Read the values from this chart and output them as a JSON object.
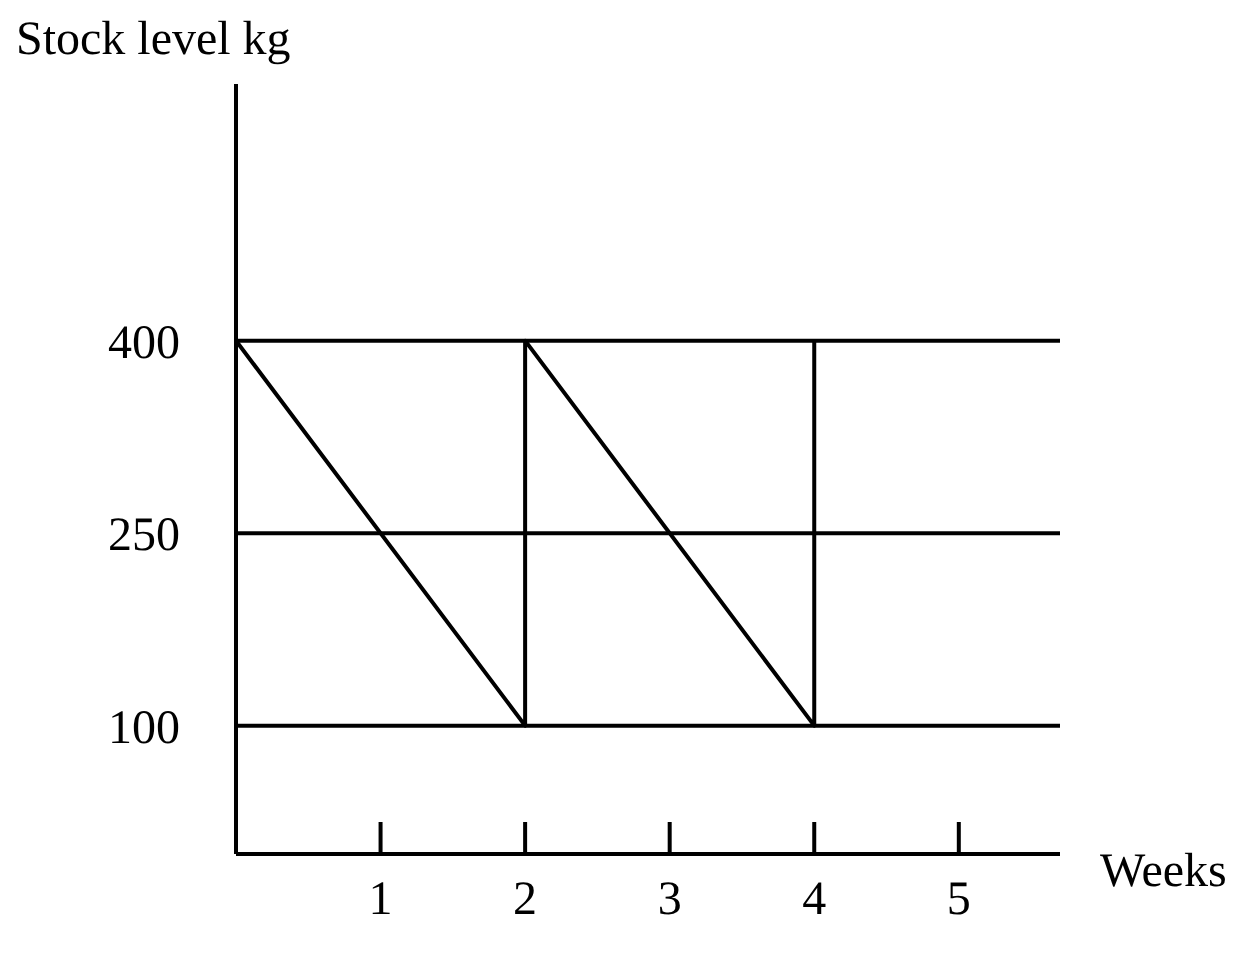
{
  "chart_data": {
    "type": "line",
    "xlabel": "Weeks",
    "ylabel": "Stock level kg",
    "x": [
      0,
      2,
      2,
      4,
      4
    ],
    "series": [
      {
        "color": "#000000",
        "values": [
          400,
          100,
          400,
          100,
          400
        ]
      }
    ],
    "xlim": [
      0,
      5.7
    ],
    "xticks": [
      1,
      2,
      3,
      4,
      5
    ],
    "ylim": [
      0,
      600
    ],
    "yticks": [
      100,
      250,
      400
    ],
    "ref_lines": [
      {
        "axis": "y",
        "value": 400,
        "color": "#000000"
      },
      {
        "axis": "y",
        "value": 250,
        "color": "#000000"
      },
      {
        "axis": "y",
        "value": 100,
        "color": "#000000"
      }
    ],
    "grid": false,
    "legend": false,
    "marker": "none",
    "line_style": "solid"
  }
}
